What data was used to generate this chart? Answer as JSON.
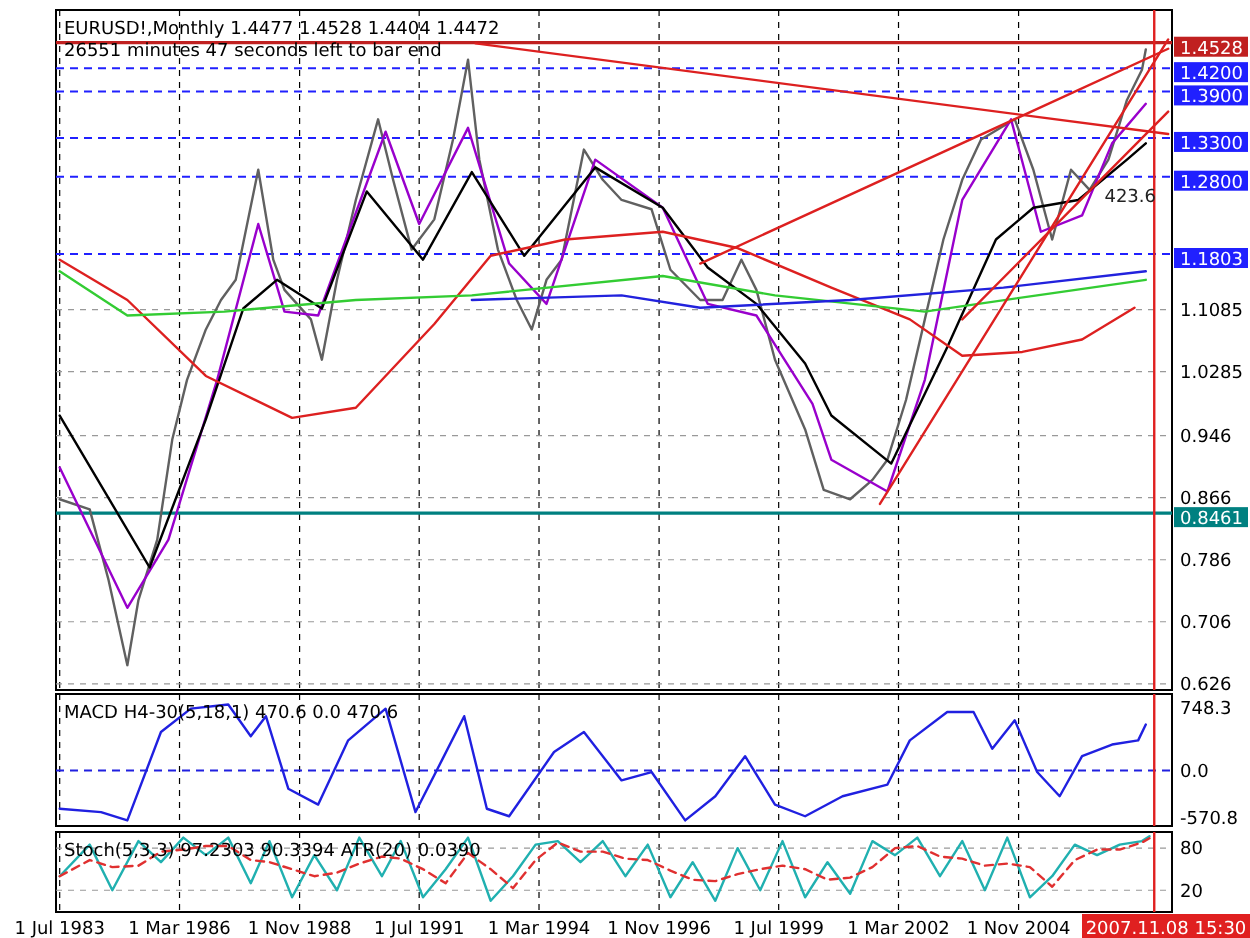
{
  "chart_data": [
    {
      "type": "line",
      "title": "EURUSD!,Monthly  1.4477 1.4528 1.4404 1.4472",
      "subtitle": "26551 minutes 47 seconds left to bar end",
      "xlim": [
        "1983-06",
        "2008-04"
      ],
      "xticks": [
        {
          "value": "1983-07",
          "label": null
        },
        {
          "value": "1986-03",
          "label": null
        },
        {
          "value": "1988-11",
          "label": null
        },
        {
          "value": "1991-07",
          "label": null
        },
        {
          "value": "1994-03",
          "label": null
        },
        {
          "value": "1996-11",
          "label": null
        },
        {
          "value": "1999-07",
          "label": null
        },
        {
          "value": "2002-03",
          "label": null
        },
        {
          "value": "2004-11",
          "label": null
        }
      ],
      "ylim": [
        0.618,
        1.495
      ],
      "yticks": [
        0.626,
        0.706,
        0.786,
        0.866,
        0.946,
        1.0285,
        1.1085
      ],
      "tick_labels": "y",
      "grid": true,
      "series": [
        {
          "type": "line",
          "color": "#606060",
          "x": [
            "1983-07",
            "1984-03",
            "1984-08",
            "1985-01",
            "1985-04",
            "1985-09",
            "1986-01",
            "1986-05",
            "1986-10",
            "1987-02",
            "1987-06",
            "1987-12",
            "1988-04",
            "1988-07",
            "1989-02",
            "1989-05",
            "1989-09",
            "1990-02",
            "1990-08",
            "1990-12",
            "1991-05",
            "1991-11",
            "1992-04",
            "1992-08",
            "1992-11",
            "1993-04",
            "1993-09",
            "1994-01",
            "1994-05",
            "1994-09",
            "1995-03",
            "1995-08",
            "1996-01",
            "1996-09",
            "1997-02",
            "1997-10",
            "1998-04",
            "1998-09",
            "1999-01",
            "1999-06",
            "2000-02",
            "2000-07",
            "2001-02",
            "2001-08",
            "2001-12",
            "2002-05",
            "2002-10",
            "2003-03",
            "2003-08",
            "2004-01",
            "2004-10",
            "2005-03",
            "2005-08",
            "2006-01",
            "2006-06",
            "2006-11",
            "2007-04",
            "2007-08",
            "2007-09"
          ],
          "values": [
            0.864,
            0.851,
            0.76,
            0.65,
            0.734,
            0.812,
            0.941,
            1.018,
            1.083,
            1.121,
            1.147,
            1.289,
            1.173,
            1.134,
            1.096,
            1.044,
            1.147,
            1.25,
            1.354,
            1.276,
            1.186,
            1.225,
            1.328,
            1.431,
            1.302,
            1.186,
            1.121,
            1.083,
            1.147,
            1.173,
            1.315,
            1.276,
            1.25,
            1.238,
            1.16,
            1.121,
            1.121,
            1.173,
            1.134,
            1.044,
            0.954,
            0.876,
            0.864,
            0.889,
            0.915,
            0.992,
            1.096,
            1.199,
            1.276,
            1.328,
            1.354,
            1.289,
            1.199,
            1.289,
            1.263,
            1.302,
            1.379,
            1.418,
            1.444
          ]
        },
        {
          "type": "line",
          "color": "#9900cc",
          "x": [
            "1983-07",
            "1985-01",
            "1985-12",
            "1987-01",
            "1987-12",
            "1988-07",
            "1989-04",
            "1990-10",
            "1991-07",
            "1992-08",
            "1993-07",
            "1994-05",
            "1995-06",
            "1996-12",
            "1997-12",
            "1999-01",
            "2000-04",
            "2000-09",
            "2001-12",
            "2002-10",
            "2003-08",
            "2004-09",
            "2005-05",
            "2006-04",
            "2006-12",
            "2007-09"
          ],
          "values": [
            0.905,
            0.724,
            0.812,
            1.018,
            1.219,
            1.106,
            1.101,
            1.338,
            1.219,
            1.343,
            1.168,
            1.116,
            1.302,
            1.24,
            1.116,
            1.101,
            0.987,
            0.915,
            0.874,
            1.018,
            1.25,
            1.354,
            1.209,
            1.23,
            1.323,
            1.374
          ]
        },
        {
          "type": "line",
          "color": "#000000",
          "x": [
            "1983-07",
            "1985-07",
            "1986-10",
            "1987-08",
            "1988-05",
            "1989-05",
            "1990-05",
            "1991-08",
            "1992-09",
            "1993-11",
            "1995-06",
            "1996-12",
            "1997-12",
            "1999-01",
            "2000-02",
            "2000-09",
            "2002-01",
            "2003-04",
            "2004-05",
            "2005-03",
            "2006-03",
            "2007-04",
            "2007-09"
          ],
          "values": [
            0.972,
            0.776,
            0.967,
            1.11,
            1.147,
            1.11,
            1.261,
            1.173,
            1.286,
            1.178,
            1.292,
            1.24,
            1.163,
            1.116,
            1.039,
            0.972,
            0.91,
            1.06,
            1.199,
            1.24,
            1.25,
            1.302,
            1.323
          ]
        },
        {
          "type": "line",
          "color": "#dd2020",
          "x": [
            "1983-07",
            "1985-01",
            "1986-10",
            "1988-09",
            "1990-02",
            "1991-11",
            "1993-02",
            "1994-10",
            "1996-12",
            "1998-08",
            "2000-09",
            "2002-06",
            "2003-08",
            "2004-12",
            "2006-04",
            "2007-06"
          ],
          "values": [
            1.173,
            1.121,
            1.023,
            0.969,
            0.982,
            1.09,
            1.178,
            1.199,
            1.209,
            1.188,
            1.137,
            1.096,
            1.049,
            1.054,
            1.07,
            1.111
          ]
        },
        {
          "type": "line",
          "color": "#33cc33",
          "x": [
            "1983-07",
            "1985-01",
            "1987-03",
            "1990-02",
            "1992-09",
            "1996-12",
            "1999-06",
            "2002-10",
            "2005-04",
            "2007-09"
          ],
          "values": [
            1.158,
            1.101,
            1.106,
            1.121,
            1.127,
            1.152,
            1.127,
            1.106,
            1.127,
            1.147
          ]
        },
        {
          "type": "line",
          "color": "#2222dd",
          "x": [
            "1992-09",
            "1996-01",
            "1997-10",
            "2001-02",
            "2004-07",
            "2007-09"
          ],
          "values": [
            1.121,
            1.127,
            1.111,
            1.121,
            1.137,
            1.158
          ]
        },
        {
          "type": "line",
          "color": "#dd2020",
          "x": [
            "1992-10",
            "2008-03"
          ],
          "values": [
            1.452,
            1.335
          ]
        },
        {
          "type": "line",
          "color": "#dd2020",
          "x": [
            "1997-10",
            "2008-03"
          ],
          "values": [
            1.168,
            1.445
          ]
        },
        {
          "type": "line",
          "color": "#dd2020",
          "x": [
            "2001-10",
            "2008-03"
          ],
          "values": [
            0.858,
            1.457
          ]
        },
        {
          "type": "line",
          "color": "#dd2020",
          "x": [
            "2003-08",
            "2008-03"
          ],
          "values": [
            1.096,
            1.364
          ]
        }
      ],
      "ref_lines": [
        {
          "axis": "y",
          "value": 1.4528,
          "label": "1.4528",
          "color": "#c02020",
          "line_style": "solid"
        },
        {
          "axis": "y",
          "value": 1.42,
          "label": "1.4200",
          "color": "#2020ff",
          "line_style": "dashed"
        },
        {
          "axis": "y",
          "value": 1.39,
          "label": "1.3900",
          "color": "#2020ff",
          "line_style": "dashed"
        },
        {
          "axis": "y",
          "value": 1.33,
          "label": "1.3300",
          "color": "#2020ff",
          "line_style": "dashed"
        },
        {
          "axis": "y",
          "value": 1.28,
          "label": "1.2800",
          "color": "#2020ff",
          "line_style": "dashed"
        },
        {
          "axis": "y",
          "value": 1.1803,
          "label": "1.1803",
          "color": "#2020ff",
          "line_style": "dashed"
        },
        {
          "axis": "y",
          "value": 0.8461,
          "label": "0.8461",
          "color": "#008080",
          "line_style": "solid"
        },
        {
          "axis": "x",
          "value": "2007-11-08T15:30",
          "color": "#e02020",
          "line_style": "solid"
        }
      ],
      "annotations": [
        "423.6"
      ]
    },
    {
      "type": "line",
      "title": "MACD H4-30(5,18,1) 470.6 0.0 470.6",
      "xlim": [
        "1983-06",
        "2008-04"
      ],
      "xticks": [
        {
          "value": "1983-07",
          "label": null
        },
        {
          "value": "1986-03",
          "label": null
        },
        {
          "value": "1988-11",
          "label": null
        },
        {
          "value": "1991-07",
          "label": null
        },
        {
          "value": "1994-03",
          "label": null
        },
        {
          "value": "1996-11",
          "label": null
        },
        {
          "value": "1999-07",
          "label": null
        },
        {
          "value": "2002-03",
          "label": null
        },
        {
          "value": "2004-11",
          "label": null
        }
      ],
      "ylim": [
        -667,
        916
      ],
      "yticks": [
        -570.8,
        {
          "value": 0,
          "label": "0.0"
        },
        748.3
      ],
      "tick_labels": "y",
      "grid": "x",
      "series": [
        {
          "type": "line",
          "color": "#2020e0",
          "x": [
            "1983-07",
            "1984-06",
            "1985-01",
            "1985-10",
            "1986-06",
            "1987-04",
            "1987-10",
            "1988-02",
            "1988-08",
            "1989-04",
            "1989-12",
            "1990-10",
            "1991-06",
            "1992-01",
            "1992-07",
            "1993-01",
            "1993-07",
            "1994-07",
            "1995-03",
            "1996-01",
            "1996-09",
            "1997-06",
            "1998-02",
            "1998-10",
            "1999-06",
            "2000-02",
            "2000-12",
            "2001-12",
            "2002-06",
            "2003-04",
            "2003-11",
            "2004-04",
            "2004-10",
            "2005-04",
            "2005-10",
            "2006-04",
            "2006-12",
            "2007-07",
            "2007-09"
          ],
          "values": [
            -460,
            -500,
            -600,
            460,
            740,
            790,
            410,
            650,
            -220,
            -410,
            360,
            740,
            -500,
            120,
            650,
            -460,
            -550,
            220,
            460,
            -120,
            -20,
            -600,
            -310,
            170,
            -410,
            -550,
            -310,
            -170,
            360,
            700,
            700,
            260,
            600,
            -20,
            -310,
            170,
            310,
            360,
            550
          ]
        }
      ],
      "ref_lines": [
        {
          "axis": "y",
          "value": 0,
          "color": "#2020e0",
          "line_style": "dashed"
        },
        {
          "axis": "x",
          "value": "2007-11-08T15:30",
          "color": "#e02020",
          "line_style": "solid"
        }
      ]
    },
    {
      "type": "line",
      "title": "Stoch(5,3,3) 97.2303 90.3394  ATR(20) 0.0390",
      "xlim": [
        "1983-06",
        "2008-04"
      ],
      "xticks": [
        {
          "value": "1983-07",
          "label": "1 Jul 1983"
        },
        {
          "value": "1986-03",
          "label": "1 Mar 1986"
        },
        {
          "value": "1988-11",
          "label": "1 Nov 1988"
        },
        {
          "value": "1991-07",
          "label": "1 Jul 1991"
        },
        {
          "value": "1994-03",
          "label": "1 Mar 1994"
        },
        {
          "value": "1996-11",
          "label": "1 Nov 1996"
        },
        {
          "value": "1999-07",
          "label": "1 Jul 1999"
        },
        {
          "value": "2002-03",
          "label": "1 Mar 2002"
        },
        {
          "value": "2004-11",
          "label": "1 Nov 2004"
        }
      ],
      "ylim": [
        -11,
        103
      ],
      "yticks": [
        20,
        80
      ],
      "grid": true,
      "series": [
        {
          "type": "line",
          "color": "#20b0b0",
          "line_style": "solid",
          "x": [
            "1983-07",
            "1984-03",
            "1984-09",
            "1985-04",
            "1985-10",
            "1986-04",
            "1986-10",
            "1987-04",
            "1987-10",
            "1988-03",
            "1988-09",
            "1989-03",
            "1989-09",
            "1990-03",
            "1990-09",
            "1991-02",
            "1991-08",
            "1992-02",
            "1992-08",
            "1993-02",
            "1993-08",
            "1994-02",
            "1994-08",
            "1995-02",
            "1995-08",
            "1996-02",
            "1996-08",
            "1997-02",
            "1997-08",
            "1998-02",
            "1998-08",
            "1999-02",
            "1999-08",
            "2000-02",
            "2000-08",
            "2001-02",
            "2001-08",
            "2002-02",
            "2002-08",
            "2003-02",
            "2003-08",
            "2004-02",
            "2004-08",
            "2005-02",
            "2005-08",
            "2006-02",
            "2006-08",
            "2007-02",
            "2007-08",
            "2007-10"
          ],
          "values": [
            40,
            85,
            20,
            90,
            60,
            95,
            70,
            95,
            30,
            90,
            10,
            70,
            20,
            95,
            40,
            90,
            10,
            50,
            95,
            5,
            40,
            85,
            90,
            60,
            90,
            40,
            85,
            10,
            60,
            5,
            80,
            20,
            90,
            10,
            60,
            15,
            90,
            70,
            95,
            40,
            90,
            20,
            95,
            10,
            40,
            85,
            70,
            85,
            90,
            97
          ]
        },
        {
          "type": "line",
          "color": "#e03030",
          "line_style": "dashed",
          "x": [
            "1983-07",
            "1984-03",
            "1984-09",
            "1985-04",
            "1985-10",
            "1986-04",
            "1986-10",
            "1987-04",
            "1987-10",
            "1988-03",
            "1988-09",
            "1989-03",
            "1989-09",
            "1990-03",
            "1990-09",
            "1991-02",
            "1991-08",
            "1992-02",
            "1992-08",
            "1993-02",
            "1993-08",
            "1994-02",
            "1994-08",
            "1995-02",
            "1995-08",
            "1996-02",
            "1996-08",
            "1997-02",
            "1997-08",
            "1998-02",
            "1998-08",
            "1999-02",
            "1999-08",
            "2000-02",
            "2000-08",
            "2001-02",
            "2001-08",
            "2002-02",
            "2002-08",
            "2003-02",
            "2003-08",
            "2004-02",
            "2004-08",
            "2005-02",
            "2005-08",
            "2006-02",
            "2006-08",
            "2007-02",
            "2007-08",
            "2007-10"
          ],
          "values": [
            40,
            63,
            53,
            55,
            75,
            78,
            83,
            83,
            63,
            60,
            50,
            40,
            45,
            58,
            68,
            65,
            50,
            30,
            73,
            50,
            23,
            63,
            88,
            75,
            75,
            65,
            63,
            48,
            35,
            33,
            43,
            50,
            55,
            50,
            35,
            38,
            53,
            80,
            83,
            68,
            65,
            55,
            58,
            53,
            25,
            63,
            78,
            78,
            88,
            94
          ]
        }
      ],
      "ref_lines": [
        {
          "axis": "x",
          "value": "2007-11-08T15:30",
          "label": "2007.11.08 15:30",
          "color": "#e02020",
          "line_style": "solid"
        }
      ]
    }
  ]
}
